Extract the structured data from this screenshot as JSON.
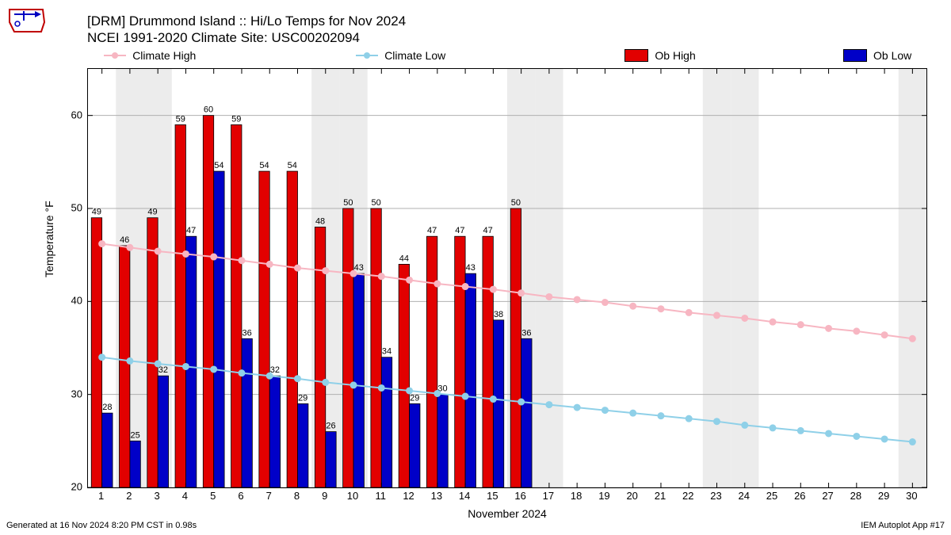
{
  "logo": {
    "stroke": "#c00000"
  },
  "title": {
    "line1": "[DRM] Drummond Island :: Hi/Lo Temps for Nov 2024",
    "line2": "NCEI 1991-2020 Climate Site: USC00202094",
    "fontsize": 17
  },
  "legend": {
    "items": [
      {
        "kind": "line",
        "label": "Climate High",
        "color": "#f7b6c2"
      },
      {
        "kind": "line",
        "label": "Climate Low",
        "color": "#8fd0e8"
      },
      {
        "kind": "bar",
        "label": "Ob High",
        "color": "#e20000"
      },
      {
        "kind": "bar",
        "label": "Ob Low",
        "color": "#0000c8"
      }
    ],
    "positions_pct": [
      2,
      32,
      64,
      90
    ]
  },
  "axes": {
    "ylabel": "Temperature °F",
    "xlabel": "November 2024",
    "ylim": [
      20,
      65
    ],
    "yticks": [
      20,
      30,
      40,
      50,
      60
    ],
    "grid_color": "#b0b0b0",
    "days": [
      1,
      2,
      3,
      4,
      5,
      6,
      7,
      8,
      9,
      10,
      11,
      12,
      13,
      14,
      15,
      16,
      17,
      18,
      19,
      20,
      21,
      22,
      23,
      24,
      25,
      26,
      27,
      28,
      29,
      30
    ],
    "weekend_days": [
      2,
      3,
      9,
      10,
      16,
      17,
      23,
      24,
      30
    ],
    "weekend_fill": "#ececec",
    "label_fontsize": 13,
    "value_label_fontsize": 11,
    "bar_width_frac": 0.38,
    "bar_stroke": "#000000"
  },
  "series": {
    "ob_high": {
      "color": "#e20000",
      "values": {
        "1": 49,
        "2": 46,
        "3": 49,
        "4": 59,
        "5": 60,
        "6": 59,
        "7": 54,
        "8": 54,
        "9": 48,
        "10": 50,
        "11": 50,
        "12": 44,
        "13": 47,
        "14": 47,
        "15": 47,
        "16": 50
      }
    },
    "ob_low": {
      "color": "#0000c8",
      "values": {
        "1": 28,
        "2": 25,
        "3": 32,
        "4": 47,
        "5": 54,
        "6": 36,
        "7": 32,
        "8": 29,
        "9": 26,
        "10": 43,
        "11": 34,
        "12": 29,
        "13": 30,
        "14": 43,
        "15": 38,
        "16": 36
      }
    },
    "climate_high": {
      "color": "#f7b6c2",
      "marker_r": 4,
      "values": [
        46.2,
        45.8,
        45.4,
        45.1,
        44.8,
        44.4,
        44.0,
        43.6,
        43.3,
        43.0,
        42.7,
        42.3,
        41.9,
        41.6,
        41.3,
        40.9,
        40.5,
        40.2,
        39.9,
        39.5,
        39.2,
        38.8,
        38.5,
        38.2,
        37.8,
        37.5,
        37.1,
        36.8,
        36.4,
        36.0
      ]
    },
    "climate_low": {
      "color": "#8fd0e8",
      "marker_r": 4,
      "values": [
        34.0,
        33.6,
        33.3,
        33.0,
        32.7,
        32.3,
        32.0,
        31.7,
        31.3,
        31.0,
        30.7,
        30.4,
        30.1,
        29.8,
        29.5,
        29.2,
        28.9,
        28.6,
        28.3,
        28.0,
        27.7,
        27.4,
        27.1,
        26.7,
        26.4,
        26.1,
        25.8,
        25.5,
        25.2,
        24.9
      ]
    }
  },
  "footer": {
    "left": "Generated at 16 Nov 2024 8:20 PM CST in 0.98s",
    "right": "IEM Autoplot App #17"
  }
}
